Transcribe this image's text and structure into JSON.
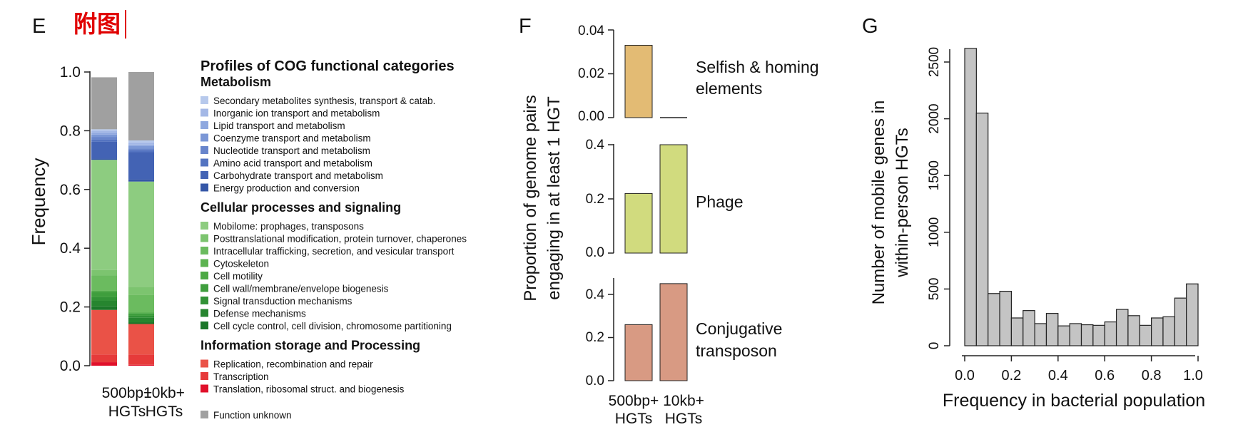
{
  "header": {
    "note": "附图"
  },
  "panels": {
    "E": {
      "letter": "E",
      "ylabel": "Frequency",
      "yticks": [
        "1.0",
        "0.8",
        "0.6",
        "0.4",
        "0.2",
        "0.0"
      ],
      "bars": [
        {
          "line1": "500bp+",
          "line2": "HGTs"
        },
        {
          "line1": "10kb+",
          "line2": "HGTs"
        }
      ],
      "legend_title": "Profiles of COG functional categories",
      "groups": [
        {
          "title": "Metabolism",
          "items": [
            {
              "label": "Secondary metabolites synthesis, transport & catab.",
              "color": "#b7c9ec"
            },
            {
              "label": "Inorganic ion transport and metabolism",
              "color": "#a4b8e6"
            },
            {
              "label": "Lipid transport and metabolism",
              "color": "#8fa8df"
            },
            {
              "label": "Coenzyme transport and metabolism",
              "color": "#7b97d6"
            },
            {
              "label": "Nucleotide transport and metabolism",
              "color": "#6885cc"
            },
            {
              "label": "Amino acid transport and metabolism",
              "color": "#5474c1"
            },
            {
              "label": "Carbohydrate transport and metabolism",
              "color": "#4363b4"
            },
            {
              "label": "Energy production and conversion",
              "color": "#3557a7"
            }
          ]
        },
        {
          "title": "Cellular processes and signaling",
          "items": [
            {
              "label": "Mobilome: prophages, transposons",
              "color": "#8dcc80"
            },
            {
              "label": "Posttranslational modification, protein turnover, chaperones",
              "color": "#7cc46f"
            },
            {
              "label": "Intracellular trafficking, secretion, and vesicular transport",
              "color": "#6bbb5f"
            },
            {
              "label": "Cytoskeleton",
              "color": "#5cb350"
            },
            {
              "label": "Cell motility",
              "color": "#4da945"
            },
            {
              "label": "Cell wall/membrane/envelope biogenesis",
              "color": "#3f9e3d"
            },
            {
              "label": "Signal transduction mechanisms",
              "color": "#329236"
            },
            {
              "label": "Defense mechanisms",
              "color": "#26852f"
            },
            {
              "label": "Cell cycle control, cell division, chromosome partitioning",
              "color": "#1b7729"
            }
          ]
        },
        {
          "title": "Information storage and Processing",
          "items": [
            {
              "label": "Replication, recombination and repair",
              "color": "#ea5247"
            },
            {
              "label": "Transcription",
              "color": "#e63a3a"
            },
            {
              "label": "Translation, ribosomal struct. and biogenesis",
              "color": "#e0102a"
            }
          ]
        }
      ],
      "extra_item": {
        "label": "Function unknown",
        "color": "#a0a0a0"
      }
    },
    "F": {
      "letter": "F",
      "ylabel_line1": "Proportion of genome pairs",
      "ylabel_line2": "engaging in at least 1 HGT",
      "subpanels": [
        {
          "label_line1": "Selfish & homing",
          "label_line2": "elements",
          "ticks": [
            "0.04",
            "0.02",
            "0.00"
          ]
        },
        {
          "label_line1": "Phage",
          "label_line2": "",
          "ticks": [
            "0.4",
            "0.2",
            "0.0"
          ]
        },
        {
          "label_line1": "Conjugative",
          "label_line2": "transposon",
          "ticks": [
            "0.4",
            "0.2",
            "0.0"
          ]
        }
      ],
      "categories": [
        {
          "line1": "500bp+",
          "line2": "HGTs"
        },
        {
          "line1": "10kb+",
          "line2": "HGTs"
        }
      ]
    },
    "G": {
      "letter": "G",
      "ylabel_line1": "Number of mobile genes in",
      "ylabel_line2": "within-person HGTs",
      "xlabel": "Frequency in bacterial population",
      "xticks": [
        "0.0",
        "0.2",
        "0.4",
        "0.6",
        "0.8",
        "1.0"
      ],
      "yticks": [
        "2500",
        "2000",
        "1500",
        "1000",
        "500",
        "0"
      ]
    }
  },
  "chart_data": [
    {
      "type": "bar",
      "stacked": true,
      "panel": "E",
      "categories": [
        "500bp+ HGTs",
        "10kb+ HGTs"
      ],
      "ylabel": "Frequency",
      "ylim": [
        0,
        1
      ],
      "series": [
        {
          "name": "Translation, ribosomal struct. and biogenesis",
          "values": [
            0.012,
            0.003
          ]
        },
        {
          "name": "Transcription",
          "values": [
            0.026,
            0.035
          ]
        },
        {
          "name": "Replication, recombination and repair",
          "values": [
            0.152,
            0.104
          ]
        },
        {
          "name": "Cell cycle control, cell division, chromosome partitioning",
          "values": [
            0.012,
            0.006
          ]
        },
        {
          "name": "Defense mechanisms",
          "values": [
            0.02,
            0.015
          ]
        },
        {
          "name": "Signal transduction mechanisms",
          "values": [
            0.012,
            0.007
          ]
        },
        {
          "name": "Cell wall/membrane/envelope biogenesis",
          "values": [
            0.018,
            0.008
          ]
        },
        {
          "name": "Cell motility",
          "values": [
            0.003,
            0.003
          ]
        },
        {
          "name": "Cytoskeleton",
          "values": [
            0.001,
            0.001
          ]
        },
        {
          "name": "Intracellular trafficking, secretion, and vesicular transport",
          "values": [
            0.052,
            0.06
          ]
        },
        {
          "name": "Posttranslational modification, protein turnover, chaperones",
          "values": [
            0.018,
            0.025
          ]
        },
        {
          "name": "Mobilome: prophages, transposons",
          "values": [
            0.375,
            0.36
          ]
        },
        {
          "name": "Energy production and conversion",
          "values": [
            0.004,
            0.008
          ]
        },
        {
          "name": "Carbohydrate transport and metabolism",
          "values": [
            0.058,
            0.092
          ]
        },
        {
          "name": "Amino acid transport and metabolism",
          "values": [
            0.008,
            0.008
          ]
        },
        {
          "name": "Nucleotide transport and metabolism",
          "values": [
            0.008,
            0.005
          ]
        },
        {
          "name": "Coenzyme transport and metabolism",
          "values": [
            0.008,
            0.008
          ]
        },
        {
          "name": "Lipid transport and metabolism",
          "values": [
            0.006,
            0.005
          ]
        },
        {
          "name": "Inorganic ion transport and metabolism",
          "values": [
            0.007,
            0.007
          ]
        },
        {
          "name": "Secondary metabolites synthesis, transport & catab.",
          "values": [
            0.005,
            0.007
          ]
        },
        {
          "name": "Function unknown",
          "values": [
            0.177,
            0.233
          ]
        }
      ]
    },
    {
      "type": "bar",
      "panel": "F",
      "ylabel": "Proportion of genome pairs engaging in at least 1 HGT",
      "categories": [
        "500bp+ HGTs",
        "10kb+ HGTs"
      ],
      "series": [
        {
          "name": "Selfish & homing elements",
          "values": [
            0.033,
            0.0003
          ],
          "ylim": [
            0,
            0.04
          ],
          "color": "#e3bb74"
        },
        {
          "name": "Phage",
          "values": [
            0.22,
            0.4
          ],
          "ylim": [
            0,
            0.4
          ],
          "color": "#d1db7e"
        },
        {
          "name": "Conjugative transposon",
          "values": [
            0.26,
            0.45
          ],
          "ylim": [
            0,
            0.45
          ],
          "color": "#d89a83"
        }
      ]
    },
    {
      "type": "bar",
      "panel": "G",
      "histogram": true,
      "xlabel": "Frequency in bacterial population",
      "ylabel": "Number of mobile genes in within-person HGTs",
      "xlim": [
        0,
        1
      ],
      "ylim": [
        0,
        2600
      ],
      "bin_width": 0.05,
      "bin_edges": [
        0.0,
        0.05,
        0.1,
        0.15,
        0.2,
        0.25,
        0.3,
        0.35,
        0.4,
        0.45,
        0.5,
        0.55,
        0.6,
        0.65,
        0.7,
        0.75,
        0.8,
        0.85,
        0.9,
        0.95,
        1.0
      ],
      "values": [
        2620,
        2050,
        460,
        480,
        245,
        310,
        195,
        285,
        175,
        195,
        185,
        180,
        210,
        320,
        265,
        180,
        245,
        255,
        420,
        545
      ],
      "color": "#c4c4c4"
    }
  ]
}
